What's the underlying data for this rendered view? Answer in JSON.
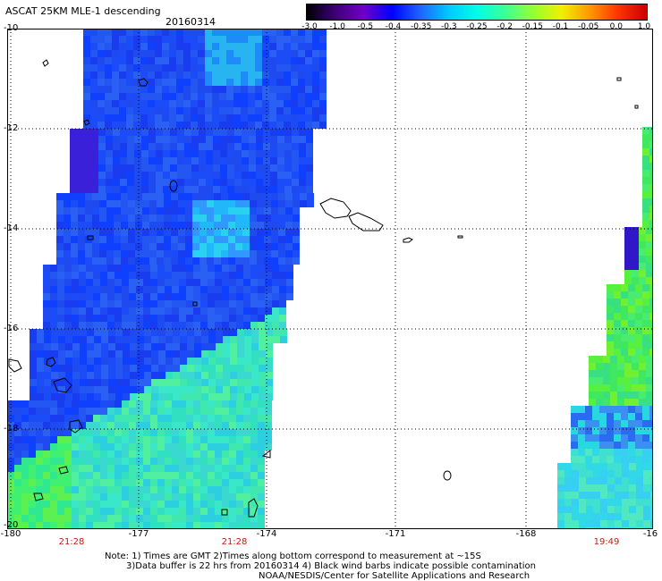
{
  "title": "ASCAT 25KM MLE-1 descending",
  "date": "20160314",
  "colorbar": {
    "labels": [
      "-3.0",
      "-1.0",
      "-0.5",
      "-0.4",
      "-0.35",
      "-0.3",
      "-0.25",
      "-0.2",
      "-0.15",
      "-0.1",
      "-0.05",
      "0.0",
      "1.0"
    ],
    "colors": [
      "#000000",
      "#3c0078",
      "#7000c8",
      "#0000ff",
      "#1e64ff",
      "#00c8ff",
      "#00ffe6",
      "#3cff96",
      "#96ff32",
      "#f0f000",
      "#ff9600",
      "#ff3200",
      "#c80000"
    ]
  },
  "y_labels": [
    "-10",
    "-12",
    "-14",
    "-16",
    "-18",
    "-20"
  ],
  "x_labels": [
    "-180",
    "-177",
    "-174",
    "-171",
    "-168",
    "-16"
  ],
  "time_labels": [
    "21:28",
    "21:28",
    "19:49"
  ],
  "notes": {
    "line1": "Note: 1) Times are GMT 2)Times along bottom correspond to measurement at ~15S",
    "line2": "3)Data buffer is 22 hrs from 20160314 4) Black wind barbs indicate possible contamination",
    "line3": "NOAA/NESDIS/Center for Satellite Applications and Research"
  },
  "colors": {
    "time_label": "#c02010",
    "grid": "#000000"
  }
}
